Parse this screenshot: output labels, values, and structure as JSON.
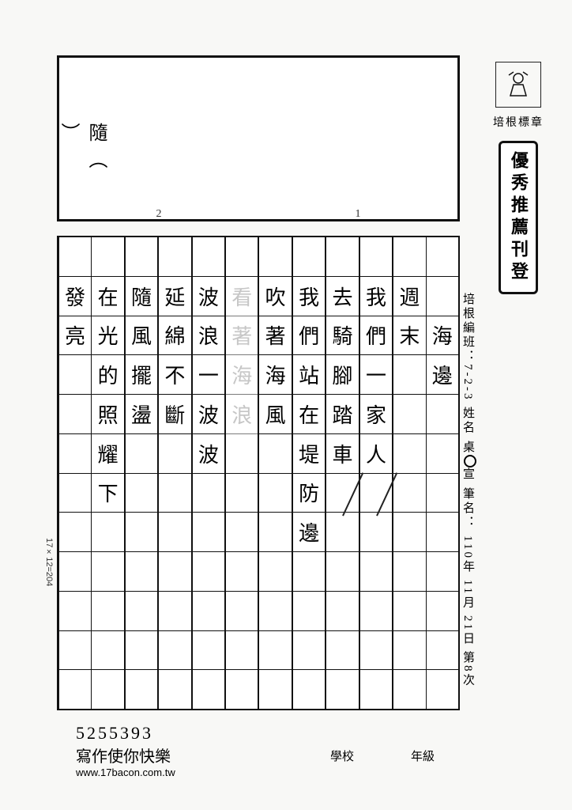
{
  "logo_caption": "培根標章",
  "stamp": "優秀推薦刊登",
  "info": {
    "class_label": "培根編班：",
    "class_value": "7-2-3",
    "name_label": "姓名",
    "name_value_pre": "桌",
    "name_value_post": "宣",
    "penname_label": "筆名：",
    "year": "110",
    "year_unit": "年",
    "month": "11",
    "month_unit": "月",
    "day": "21",
    "day_unit": "日",
    "seq_pre": "第",
    "seq_num": "8",
    "seq_post": "次"
  },
  "note_box": {
    "char": "隨",
    "paren_open": "（",
    "paren_close": "）",
    "n1": "1",
    "n2": "2"
  },
  "columns": [
    [
      "",
      "",
      "海",
      "邊",
      "",
      "",
      "",
      "",
      "",
      "",
      "",
      ""
    ],
    [
      "",
      "週",
      "末",
      "",
      "",
      "",
      "",
      "",
      "",
      "",
      "",
      ""
    ],
    [
      "",
      "我",
      "們",
      "一",
      "家",
      "人",
      "",
      "",
      "",
      "",
      "",
      ""
    ],
    [
      "",
      "去",
      "騎",
      "腳",
      "踏",
      "車",
      "",
      "",
      "",
      "",
      "",
      ""
    ],
    [
      "",
      "我",
      "們",
      "站",
      "在",
      "堤",
      "防",
      "邊",
      "",
      "",
      "",
      ""
    ],
    [
      "",
      "吹",
      "著",
      "海",
      "風",
      "",
      "",
      "",
      "",
      "",
      "",
      ""
    ],
    [
      "",
      "",
      "",
      "",
      "",
      "",
      "",
      "",
      "",
      "",
      "",
      ""
    ],
    [
      "",
      "波",
      "浪",
      "一",
      "波",
      "波",
      "",
      "",
      "",
      "",
      "",
      ""
    ],
    [
      "",
      "延",
      "綿",
      "不",
      "斷",
      "",
      "",
      "",
      "",
      "",
      "",
      ""
    ],
    [
      "",
      "隨",
      "風",
      "擺",
      "盪",
      "",
      "",
      "",
      "",
      "",
      "",
      ""
    ],
    [
      "",
      "在",
      "光",
      "的",
      "照",
      "耀",
      "下",
      "",
      "",
      "",
      "",
      ""
    ],
    [
      "",
      "發",
      "亮",
      "",
      "",
      "",
      "",
      "",
      "",
      "",
      "",
      ""
    ]
  ],
  "faded_col_index": 6,
  "faded_cells": [
    "",
    "看",
    "著",
    "海",
    "浪",
    "",
    "",
    "",
    "",
    "",
    "",
    ""
  ],
  "check_marks": [
    {
      "col": 2,
      "row": 6
    },
    {
      "col": 3,
      "row": 6
    }
  ],
  "grid_note": "17×12=204",
  "footer": {
    "number": "5255393",
    "slogan": "寫作使你快樂",
    "url": "www.17bacon.com.tw",
    "school_label": "學校",
    "grade_label": "年級"
  }
}
